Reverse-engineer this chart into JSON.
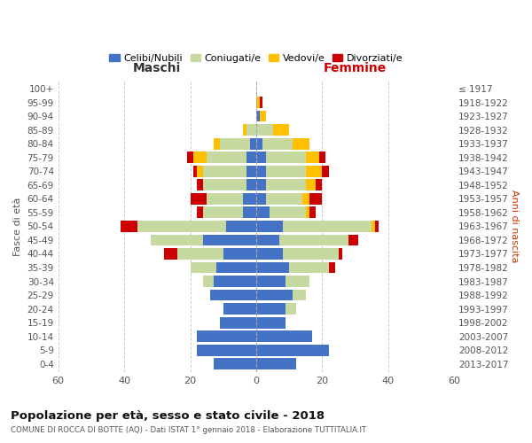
{
  "age_groups": [
    "0-4",
    "5-9",
    "10-14",
    "15-19",
    "20-24",
    "25-29",
    "30-34",
    "35-39",
    "40-44",
    "45-49",
    "50-54",
    "55-59",
    "60-64",
    "65-69",
    "70-74",
    "75-79",
    "80-84",
    "85-89",
    "90-94",
    "95-99",
    "100+"
  ],
  "birth_years": [
    "2013-2017",
    "2008-2012",
    "2003-2007",
    "1998-2002",
    "1993-1997",
    "1988-1992",
    "1983-1987",
    "1978-1982",
    "1973-1977",
    "1968-1972",
    "1963-1967",
    "1958-1962",
    "1953-1957",
    "1948-1952",
    "1943-1947",
    "1938-1942",
    "1933-1937",
    "1928-1932",
    "1923-1927",
    "1918-1922",
    "≤ 1917"
  ],
  "colors": {
    "celibi": "#4472c4",
    "coniugati": "#c5d9a0",
    "vedovi": "#ffc000",
    "divorziati": "#cc0000"
  },
  "maschi": {
    "celibi": [
      13,
      18,
      18,
      11,
      10,
      14,
      13,
      12,
      10,
      16,
      9,
      4,
      4,
      3,
      3,
      3,
      2,
      0,
      0,
      0,
      0
    ],
    "coniugati": [
      0,
      0,
      0,
      0,
      0,
      0,
      3,
      8,
      14,
      16,
      27,
      12,
      11,
      13,
      13,
      12,
      9,
      3,
      0,
      0,
      0
    ],
    "vedovi": [
      0,
      0,
      0,
      0,
      0,
      0,
      0,
      0,
      0,
      0,
      0,
      0,
      0,
      0,
      2,
      4,
      2,
      1,
      0,
      0,
      0
    ],
    "divorziati": [
      0,
      0,
      0,
      0,
      0,
      0,
      0,
      0,
      4,
      0,
      5,
      2,
      5,
      2,
      1,
      2,
      0,
      0,
      0,
      0,
      0
    ]
  },
  "femmine": {
    "celibi": [
      12,
      22,
      17,
      9,
      9,
      11,
      9,
      10,
      8,
      7,
      8,
      4,
      3,
      3,
      3,
      3,
      2,
      0,
      1,
      0,
      0
    ],
    "coniugati": [
      0,
      0,
      0,
      0,
      3,
      4,
      7,
      12,
      17,
      21,
      27,
      11,
      11,
      12,
      12,
      12,
      9,
      5,
      0,
      0,
      0
    ],
    "vedovi": [
      0,
      0,
      0,
      0,
      0,
      0,
      0,
      0,
      0,
      0,
      1,
      1,
      2,
      3,
      5,
      4,
      5,
      5,
      2,
      1,
      0
    ],
    "divorziati": [
      0,
      0,
      0,
      0,
      0,
      0,
      0,
      2,
      1,
      3,
      1,
      2,
      4,
      2,
      2,
      2,
      0,
      0,
      0,
      1,
      0
    ]
  },
  "xlim": 60,
  "title": "Popolazione per età, sesso e stato civile - 2018",
  "subtitle": "COMUNE DI ROCCA DI BOTTE (AQ) - Dati ISTAT 1° gennaio 2018 - Elaborazione TUTTITALIA.IT",
  "ylabel_left": "Fasce di età",
  "ylabel_right": "Anni di nascita",
  "xlabel_left": "Maschi",
  "xlabel_right": "Femmine",
  "background_color": "#ffffff",
  "grid_color": "#cccccc",
  "legend_labels": [
    "Celibi/Nubili",
    "Coniugati/e",
    "Vedovi/e",
    "Divorziati/e"
  ]
}
